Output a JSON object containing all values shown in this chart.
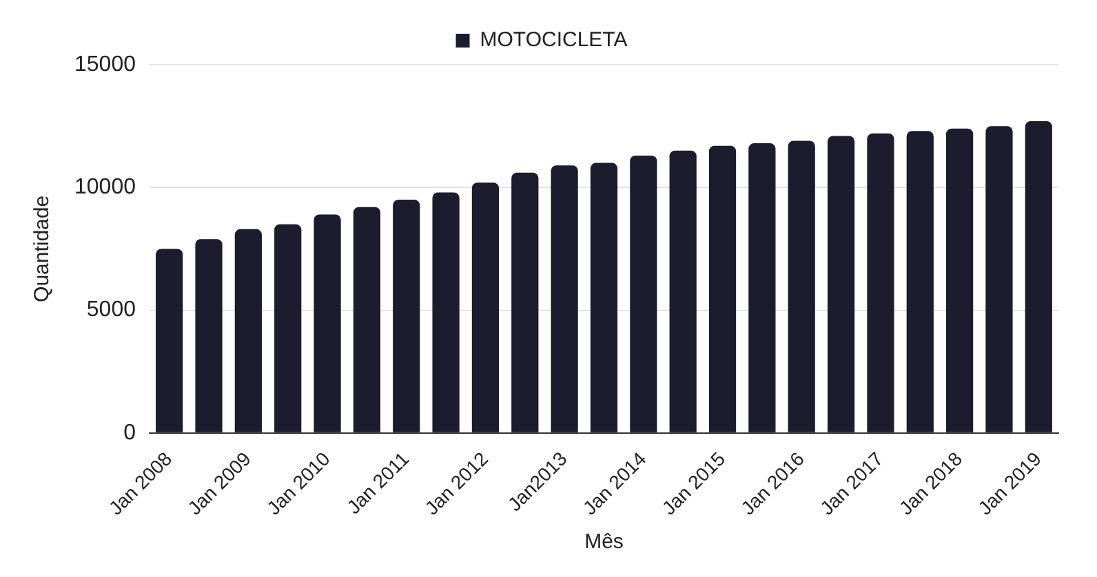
{
  "chart_data": {
    "type": "bar",
    "xlabel": "Mês",
    "ylabel": "Quantidade",
    "categories": [
      "Jan 2008",
      null,
      "Jan 2009",
      null,
      "Jan 2010",
      null,
      "Jan 2011",
      null,
      "Jan 2012",
      null,
      "Jan2013",
      null,
      "Jan 2014",
      null,
      "Jan 2015",
      null,
      "Jan 2016",
      null,
      "Jan 2017",
      null,
      "Jan 2018",
      null,
      "Jan 2019"
    ],
    "series": [
      {
        "name": "MOTOCICLETA",
        "color": "#1b1c2e",
        "values": [
          7500,
          7900,
          8300,
          8500,
          8900,
          9200,
          9500,
          9800,
          10200,
          10600,
          10900,
          11000,
          11300,
          11500,
          11700,
          11800,
          11900,
          12100,
          12200,
          12300,
          12400,
          12500,
          12700
        ]
      }
    ],
    "ylim": [
      0,
      15000
    ],
    "yticks": [
      0,
      5000,
      10000,
      15000
    ],
    "grid": "y",
    "legend": "top"
  }
}
